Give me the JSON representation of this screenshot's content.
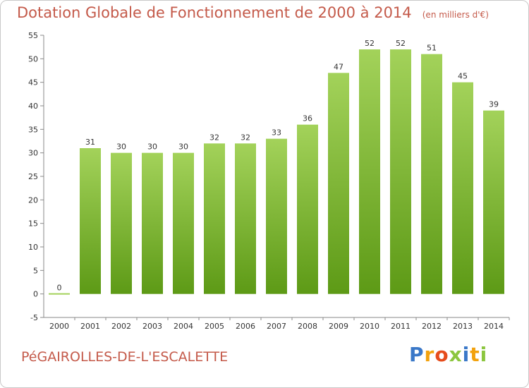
{
  "title": {
    "main": "Dotation Globale de Fonctionnement de 2000 à 2014",
    "unit": "(en milliers d'€)"
  },
  "commune": "PéGAIROLLES-DE-L'ESCALETTE",
  "logo": {
    "text": "Proxiti"
  },
  "colors": {
    "bar_top": "#a3d25a",
    "bar_bottom": "#5d9a16",
    "title": "#c45a4a",
    "axis_text": "#333333"
  },
  "chart_data": {
    "type": "bar",
    "categories": [
      "2000",
      "2001",
      "2002",
      "2003",
      "2004",
      "2005",
      "2006",
      "2007",
      "2008",
      "2009",
      "2010",
      "2011",
      "2012",
      "2013",
      "2014"
    ],
    "values": [
      0,
      31,
      30,
      30,
      30,
      32,
      32,
      33,
      36,
      47,
      52,
      52,
      51,
      45,
      39
    ],
    "ylim": [
      -5,
      55
    ],
    "yticks": [
      -5,
      0,
      5,
      10,
      15,
      20,
      25,
      30,
      35,
      40,
      45,
      50,
      55
    ],
    "grid": false,
    "legend": "none"
  }
}
